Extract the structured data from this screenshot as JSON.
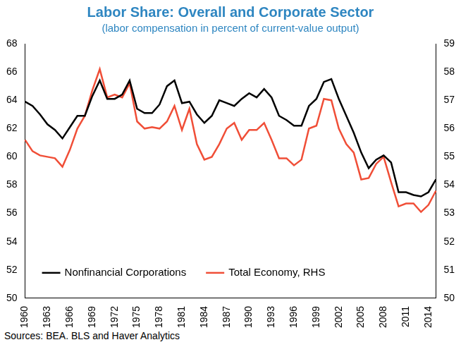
{
  "chart_data": {
    "type": "line",
    "title": "Labor Share: Overall and Corporate Sector",
    "subtitle": "(labor compensation in percent of current-value output)",
    "source": "Sources: BEA. BLS and Haver Analytics",
    "categories": [
      "1960",
      null,
      null,
      "1963",
      null,
      null,
      "1966",
      null,
      null,
      "1969",
      null,
      null,
      "1972",
      null,
      null,
      "1975",
      null,
      null,
      "1978",
      null,
      null,
      "1981",
      null,
      null,
      "1984",
      null,
      null,
      "1987",
      null,
      null,
      "1990",
      null,
      null,
      "1993",
      null,
      null,
      "1996",
      null,
      null,
      "1999",
      null,
      null,
      "2002",
      null,
      null,
      "2005",
      null,
      null,
      "2008",
      null,
      null,
      "2011",
      null,
      null,
      "2014",
      null
    ],
    "series": [
      {
        "name": "Nonfinancial Corporations",
        "color": "#000000",
        "axis": "y",
        "values": [
          63.9,
          63.6,
          63.0,
          62.3,
          61.9,
          61.3,
          62.1,
          62.9,
          62.9,
          64.3,
          65.4,
          64.1,
          64.1,
          64.4,
          65.4,
          63.4,
          63.1,
          63.1,
          63.7,
          65.0,
          65.4,
          63.8,
          63.9,
          63.0,
          62.4,
          62.9,
          64.0,
          63.8,
          63.6,
          64.1,
          64.5,
          64.2,
          64.8,
          64.2,
          62.9,
          62.6,
          62.2,
          62.2,
          63.6,
          64.1,
          65.3,
          65.5,
          64.1,
          62.9,
          61.7,
          60.3,
          59.2,
          59.8,
          60.1,
          59.6,
          57.5,
          57.5,
          57.3,
          57.2,
          57.5,
          58.4
        ]
      },
      {
        "name": "Total Economy, RHS",
        "color": "#f04e37",
        "axis": "y2",
        "values": [
          55.6,
          55.2,
          55.05,
          55.0,
          54.95,
          54.65,
          55.25,
          56.0,
          56.45,
          57.35,
          58.1,
          57.1,
          57.2,
          57.1,
          57.6,
          56.25,
          56.0,
          56.05,
          56.0,
          56.25,
          56.8,
          55.95,
          56.7,
          55.45,
          54.9,
          55.0,
          55.45,
          56.0,
          56.2,
          55.6,
          55.95,
          55.95,
          56.2,
          55.6,
          54.95,
          54.95,
          54.7,
          54.9,
          56.0,
          56.1,
          57.05,
          57.0,
          56.0,
          55.45,
          55.15,
          54.2,
          54.25,
          54.75,
          55.0,
          54.1,
          53.25,
          53.35,
          53.35,
          53.05,
          53.3,
          53.8
        ]
      }
    ],
    "ylim": [
      50,
      68
    ],
    "yticks": [
      50,
      52,
      54,
      56,
      58,
      60,
      62,
      64,
      66,
      68
    ],
    "y2lim": [
      50,
      59
    ],
    "y2ticks": [
      50,
      51,
      52,
      53,
      54,
      55,
      56,
      57,
      58,
      59
    ],
    "grid": false,
    "legend": "lower left"
  }
}
